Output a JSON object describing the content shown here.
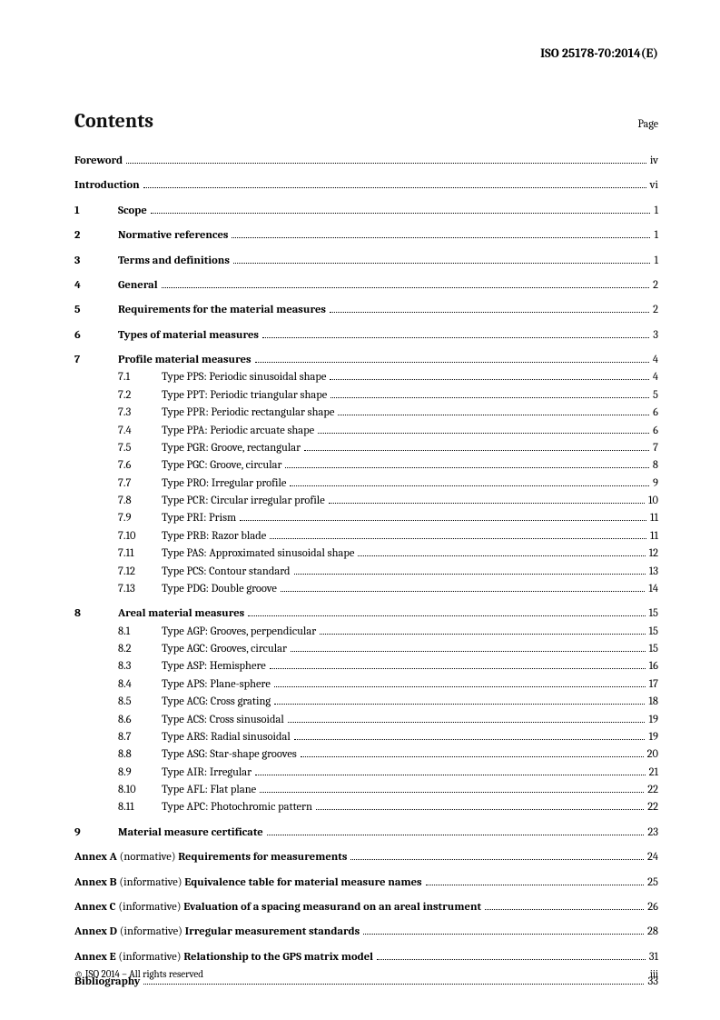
{
  "doc_id": "ISO 25178-70:2014(E)",
  "title": "Contents",
  "page_label": "Page",
  "front": [
    {
      "label_bold": "Foreword",
      "page": "iv"
    },
    {
      "label_bold": "Introduction",
      "page": "vi"
    }
  ],
  "sections": [
    {
      "num": "1",
      "label": "Scope",
      "page": "1"
    },
    {
      "num": "2",
      "label": "Normative references",
      "page": "1"
    },
    {
      "num": "3",
      "label": "Terms and definitions",
      "page": "1"
    },
    {
      "num": "4",
      "label": "General",
      "page": "2"
    },
    {
      "num": "5",
      "label": "Requirements for the material measures",
      "page": "2"
    },
    {
      "num": "6",
      "label": "Types of material measures",
      "page": "3"
    },
    {
      "num": "7",
      "label": "Profile material measures",
      "page": "4",
      "subs": [
        {
          "num": "7.1",
          "label": "Type PPS: Periodic sinusoidal shape",
          "page": "4"
        },
        {
          "num": "7.2",
          "label": "Type PPT: Periodic triangular shape",
          "page": "5"
        },
        {
          "num": "7.3",
          "label": "Type PPR: Periodic rectangular shape",
          "page": "6"
        },
        {
          "num": "7.4",
          "label": "Type PPA: Periodic arcuate shape",
          "page": "6"
        },
        {
          "num": "7.5",
          "label": "Type PGR: Groove, rectangular",
          "page": "7"
        },
        {
          "num": "7.6",
          "label": "Type PGC: Groove, circular",
          "page": "8"
        },
        {
          "num": "7.7",
          "label": "Type PRO: Irregular profile",
          "page": "9"
        },
        {
          "num": "7.8",
          "label": "Type PCR: Circular irregular profile",
          "page": "10"
        },
        {
          "num": "7.9",
          "label": "Type PRI: Prism",
          "page": "11"
        },
        {
          "num": "7.10",
          "label": "Type PRB: Razor blade",
          "page": "11"
        },
        {
          "num": "7.11",
          "label": "Type PAS: Approximated sinusoidal shape",
          "page": "12"
        },
        {
          "num": "7.12",
          "label": "Type PCS: Contour standard",
          "page": "13"
        },
        {
          "num": "7.13",
          "label": "Type PDG: Double groove",
          "page": "14"
        }
      ]
    },
    {
      "num": "8",
      "label": "Areal material measures",
      "page": "15",
      "subs": [
        {
          "num": "8.1",
          "label": "Type AGP: Grooves, perpendicular",
          "page": "15"
        },
        {
          "num": "8.2",
          "label": "Type AGC: Grooves, circular",
          "page": "15"
        },
        {
          "num": "8.3",
          "label": "Type ASP: Hemisphere",
          "page": "16"
        },
        {
          "num": "8.4",
          "label": "Type APS: Plane-sphere",
          "page": "17"
        },
        {
          "num": "8.5",
          "label": "Type ACG: Cross grating",
          "page": "18"
        },
        {
          "num": "8.6",
          "label": "Type ACS: Cross sinusoidal",
          "page": "19"
        },
        {
          "num": "8.7",
          "label": "Type ARS: Radial sinusoidal",
          "page": "19"
        },
        {
          "num": "8.8",
          "label": "Type ASG: Star-shape grooves",
          "page": "20"
        },
        {
          "num": "8.9",
          "label": "Type AIR: Irregular",
          "page": "21"
        },
        {
          "num": "8.10",
          "label": "Type AFL: Flat plane",
          "page": "22"
        },
        {
          "num": "8.11",
          "label": "Type APC: Photochromic pattern",
          "page": "22"
        }
      ]
    },
    {
      "num": "9",
      "label": "Material measure certificate",
      "page": "23"
    }
  ],
  "annexes": [
    {
      "prefix": "Annex A ",
      "paren": "(normative) ",
      "label": "Requirements for measurements",
      "page": "24"
    },
    {
      "prefix": "Annex B ",
      "paren": "(informative) ",
      "label": "Equivalence table for material measure names",
      "page": "25"
    },
    {
      "prefix": "Annex C ",
      "paren": "(informative) ",
      "label": "Evaluation of a spacing measurand on an areal instrument",
      "page": "26"
    },
    {
      "prefix": "Annex D ",
      "paren": "(informative) ",
      "label": "Irregular measurement standards",
      "page": "28"
    },
    {
      "prefix": "Annex E ",
      "paren": "(informative) ",
      "label": "Relationship to the GPS matrix model",
      "page": "31"
    }
  ],
  "biblio": {
    "label": "Bibliography",
    "page": "33"
  },
  "footer_left": "© ISO 2014 – All rights reserved",
  "footer_right": "iii"
}
